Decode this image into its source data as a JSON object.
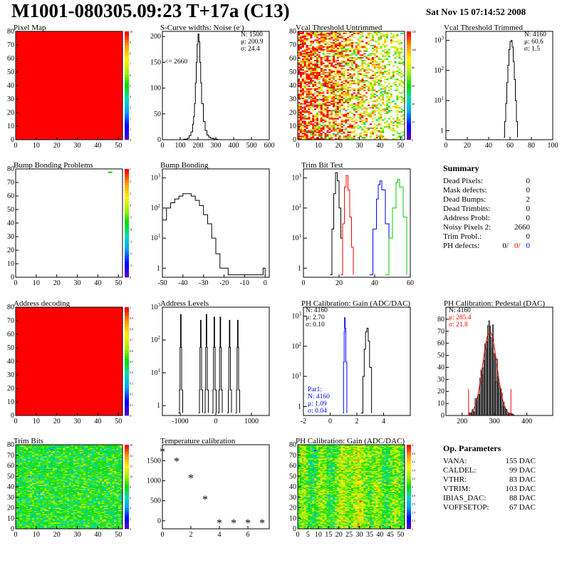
{
  "header": {
    "title": "M1001-080305.09:23 T+17a (C13)",
    "date": "Sat Nov 15 07:14:52 2008"
  },
  "chart_data": [
    {
      "id": "pixelmap",
      "type": "heatmap",
      "title": "Pixel Map",
      "xlim": [
        0,
        52
      ],
      "ylim": [
        0,
        80
      ],
      "xticks": [
        0,
        10,
        20,
        30,
        40,
        50
      ],
      "yticks": [
        0,
        10,
        20,
        30,
        40,
        50,
        60,
        70,
        80
      ],
      "palette_ticks": [
        "0",
        "1",
        "2",
        "3",
        "4",
        "5",
        "6",
        "7",
        "8",
        "9",
        "10"
      ],
      "fill": "#ff0000"
    },
    {
      "id": "scurve",
      "type": "line",
      "title": "S-Curve widths: Noise (e",
      "title_suffix": "-",
      "xlim": [
        0,
        600
      ],
      "ylim": [
        0,
        210
      ],
      "xticks": [
        0,
        100,
        200,
        300,
        400,
        500,
        600
      ],
      "yticks": [
        0,
        50,
        100,
        150,
        200
      ],
      "stats": [
        {
          "label": "N:",
          "value": "1500"
        },
        {
          "label": "μ:",
          "value": "200.9"
        },
        {
          "label": "σ:",
          "value": "24.4"
        }
      ],
      "annotation": "<= 2660",
      "x": [
        100,
        120,
        140,
        150,
        160,
        170,
        175,
        180,
        185,
        190,
        195,
        200,
        205,
        210,
        215,
        220,
        230,
        240,
        250,
        260,
        270,
        280,
        290,
        300,
        310
      ],
      "y": [
        0,
        1,
        3,
        8,
        15,
        30,
        45,
        70,
        110,
        150,
        185,
        205,
        190,
        150,
        110,
        70,
        35,
        18,
        9,
        5,
        3,
        2,
        1,
        1,
        0
      ]
    },
    {
      "id": "vcal_untrim",
      "type": "heatmap",
      "title": "Vcal Threshold Untrimmed",
      "xlim": [
        0,
        52
      ],
      "ylim": [
        0,
        80
      ],
      "xticks": [
        0,
        10,
        20,
        30,
        40,
        50
      ],
      "yticks": [
        0,
        10,
        20,
        30,
        40,
        50,
        60,
        70,
        80
      ],
      "palette_ticks": [
        "0",
        "20",
        "40",
        "60",
        "80",
        "100",
        "120"
      ]
    },
    {
      "id": "vcal_trim",
      "type": "line",
      "title": "Vcal Threshold Trimmed",
      "log": true,
      "xlim": [
        0,
        100
      ],
      "ylim": [
        0.5,
        2000
      ],
      "xticks": [
        0,
        20,
        40,
        60,
        80,
        100
      ],
      "stats": [
        {
          "label": "N:",
          "value": "4160"
        },
        {
          "label": "μ:",
          "value": "60.6"
        },
        {
          "label": "σ:",
          "value": "1.5"
        }
      ],
      "x": [
        54,
        55,
        56,
        57,
        58,
        59,
        60,
        61,
        62,
        63,
        64,
        65,
        66,
        67
      ],
      "y": [
        0.6,
        2,
        8,
        40,
        150,
        500,
        900,
        1000,
        600,
        200,
        50,
        10,
        2,
        0.6
      ]
    },
    {
      "id": "bump_problems",
      "type": "heatmap",
      "title": "Bump Bonding Problems",
      "xlim": [
        0,
        52
      ],
      "ylim": [
        0,
        80
      ],
      "xticks": [
        0,
        10,
        20,
        30,
        40,
        50
      ],
      "yticks": [
        0,
        10,
        20,
        30,
        40,
        50,
        60,
        70,
        80
      ],
      "palette_ticks": [
        "0",
        "-1",
        "-2",
        "-3",
        "-4",
        "-5",
        "4",
        "3",
        "2",
        "1"
      ],
      "fill": "#ffffff",
      "points": [
        [
          45,
          78
        ],
        [
          46,
          78
        ]
      ]
    },
    {
      "id": "bump",
      "type": "line",
      "title": "Bump Bonding",
      "log": true,
      "xlim": [
        -50,
        2
      ],
      "ylim": [
        0.5,
        2000
      ],
      "xticks": [
        -50,
        -40,
        -30,
        -20,
        -10,
        0
      ],
      "x": [
        -50,
        -48,
        -46,
        -44,
        -42,
        -40,
        -38,
        -36,
        -34,
        -32,
        -30,
        -28,
        -26,
        -24,
        -22,
        -20,
        -18,
        -1,
        0
      ],
      "y": [
        40,
        100,
        150,
        200,
        250,
        300,
        300,
        250,
        180,
        120,
        60,
        30,
        10,
        3,
        1,
        1,
        0.6,
        1,
        0.6
      ]
    },
    {
      "id": "trimbit",
      "type": "line",
      "title": "Trim Bit Test",
      "log": true,
      "xlim": [
        0,
        60
      ],
      "ylim": [
        0.5,
        2000
      ],
      "xticks": [
        0,
        20,
        40,
        60
      ],
      "series": [
        {
          "color": "#000000",
          "x": [
            15,
            16,
            17,
            18,
            19,
            20,
            21,
            22
          ],
          "y": [
            0.6,
            20,
            300,
            1500,
            800,
            100,
            10,
            0.6
          ]
        },
        {
          "color": "#ff0000",
          "x": [
            21,
            22,
            23,
            24,
            25,
            26,
            27,
            28
          ],
          "y": [
            0.6,
            30,
            500,
            1200,
            400,
            50,
            5,
            0.6
          ]
        },
        {
          "color": "#0000ff",
          "x": [
            37,
            39,
            41,
            42,
            43,
            44,
            46,
            48
          ],
          "y": [
            0.6,
            20,
            200,
            600,
            800,
            400,
            30,
            0.6
          ]
        },
        {
          "color": "#00cc00",
          "x": [
            46,
            48,
            50,
            52,
            53,
            54,
            56,
            58
          ],
          "y": [
            0.6,
            10,
            100,
            700,
            900,
            500,
            50,
            0.6
          ]
        }
      ]
    },
    {
      "id": "addr_dec",
      "type": "heatmap",
      "title": "Address decoding",
      "xlim": [
        0,
        52
      ],
      "ylim": [
        0,
        80
      ],
      "xticks": [
        0,
        10,
        20,
        30,
        40,
        50
      ],
      "yticks": [
        0,
        10,
        20,
        30,
        40,
        50,
        60,
        70,
        80
      ],
      "palette_ticks": [
        "0",
        "0.1",
        "0.2",
        "0.3",
        "0.4",
        "0.5",
        "0.6",
        "0.7",
        "0.8",
        "0.9",
        "1"
      ],
      "fill": "#ff0000"
    },
    {
      "id": "addr_levels",
      "type": "bar",
      "title": "Address Levels",
      "log": true,
      "xlim": [
        -1500,
        1500
      ],
      "ylim": [
        0.5,
        1000
      ],
      "xticks": [
        -1000,
        0,
        1000
      ],
      "peaks": [
        -990,
        -430,
        -270,
        -50,
        120,
        380,
        610
      ],
      "heights": [
        600,
        400,
        600,
        500,
        500,
        400,
        400
      ]
    },
    {
      "id": "ph_gain",
      "type": "line",
      "title": "PH Calibration: Gain (ADC/DAC)",
      "log": true,
      "xlim": [
        -2,
        6
      ],
      "ylim": [
        0.5,
        2000
      ],
      "xticks": [
        -2,
        0,
        2,
        4
      ],
      "stats": [
        {
          "label": "N:",
          "value": "4160"
        },
        {
          "label": "μ:",
          "value": "2.70"
        },
        {
          "label": "σ:",
          "value": "0.10"
        }
      ],
      "par1": {
        "label": "Par1:",
        "stats": [
          {
            "label": "N:",
            "value": "4160"
          },
          {
            "label": "μ:",
            "value": "1.09"
          },
          {
            "label": "σ:",
            "value": "0.04"
          }
        ]
      },
      "series": [
        {
          "color": "#000000",
          "x": [
            2.3,
            2.45,
            2.55,
            2.65,
            2.75,
            2.85,
            2.95,
            3.1
          ],
          "y": [
            0.6,
            10,
            80,
            300,
            400,
            150,
            20,
            0.6
          ]
        },
        {
          "color": "#0000ff",
          "x": [
            0.95,
            1.0,
            1.05,
            1.08,
            1.12,
            1.17,
            1.25
          ],
          "y": [
            0.6,
            30,
            300,
            900,
            400,
            30,
            0.6
          ]
        }
      ]
    },
    {
      "id": "ph_ped",
      "type": "bar",
      "title": "PH Calibration: Pedestal (DAC)",
      "xlim": [
        150,
        480
      ],
      "ylim": [
        0,
        90
      ],
      "xticks": [
        200,
        300,
        400
      ],
      "yticks": [
        0,
        10,
        20,
        30,
        40,
        50,
        60,
        70,
        80
      ],
      "stats": [
        {
          "label": "N:",
          "value": "4160"
        },
        {
          "label": "μ:",
          "value": "285.4"
        },
        {
          "label": "σ:",
          "value": "21.8"
        }
      ],
      "mu": 285.4,
      "sigma": 21.8,
      "amp": 70
    },
    {
      "id": "trimbits",
      "type": "heatmap",
      "title": "Trim Bits",
      "xlim": [
        0,
        52
      ],
      "ylim": [
        0,
        80
      ],
      "xticks": [
        0,
        10,
        20,
        30,
        40,
        50
      ],
      "yticks": [
        0,
        10,
        20,
        30,
        40,
        50,
        60,
        70,
        80
      ],
      "palette_ticks": [
        "0",
        "2",
        "4",
        "6",
        "8",
        "10",
        "12",
        "14",
        "16"
      ]
    },
    {
      "id": "temp",
      "type": "scatter",
      "title": "Temperature calibration",
      "xlim": [
        0,
        7.5
      ],
      "ylim": [
        -200,
        1900
      ],
      "xticks": [
        0,
        2,
        4,
        6
      ],
      "yticks": [
        0,
        500,
        1000,
        1500
      ],
      "x": [
        0,
        1,
        2,
        3,
        4,
        5,
        6,
        7
      ],
      "y": [
        1720,
        1480,
        1060,
        530,
        -60,
        -60,
        -60,
        -60
      ]
    },
    {
      "id": "ph_gain_map",
      "type": "heatmap",
      "title": "PH Calibration: Gain (ADC/DAC)",
      "xlim": [
        0,
        52
      ],
      "ylim": [
        0,
        80
      ],
      "xticks": [
        0,
        5,
        10,
        15,
        20,
        25,
        30,
        35,
        40,
        45,
        50
      ],
      "yticks": [
        0,
        10,
        20,
        30,
        40,
        50,
        60,
        70,
        80
      ],
      "palette_ticks": [
        "2",
        "2.2",
        "2.4",
        "2.6",
        "2.8",
        "3",
        "3.2",
        "3.4",
        "3.6",
        "3.8",
        "4"
      ]
    }
  ],
  "summary": {
    "title": "Summary",
    "rows": [
      {
        "label": "Dead Pixels:",
        "value": "0"
      },
      {
        "label": "Mask defects:",
        "value": "0"
      },
      {
        "label": "Dead Bumps:",
        "value": "2"
      },
      {
        "label": "Dead Trimbits:",
        "value": "0"
      },
      {
        "label": "Address Probl:",
        "value": "0"
      },
      {
        "label": "Noisy Pixels 2:",
        "value": "2660"
      },
      {
        "label": "Trim Probl.:",
        "value": "0"
      }
    ],
    "ph_label": "PH defects:",
    "ph_values": [
      {
        "v": "0/",
        "c": "#000000"
      },
      {
        "v": "0/",
        "c": "#ff0000"
      },
      {
        "v": "0",
        "c": "#0000ff"
      }
    ]
  },
  "op_params": {
    "title": "Op. Parameters",
    "rows": [
      {
        "label": "VANA:",
        "value": "155 DAC"
      },
      {
        "label": "CALDEL:",
        "value": "99 DAC"
      },
      {
        "label": "VTHR:",
        "value": "83 DAC"
      },
      {
        "label": "VTRIM:",
        "value": "103 DAC"
      },
      {
        "label": "IBIAS_DAC:",
        "value": "88 DAC"
      },
      {
        "label": "VOFFSETOP:",
        "value": "67 DAC"
      }
    ]
  },
  "colors": {
    "axis": "#000000",
    "red": "#ff0000",
    "blue": "#0000ff",
    "green": "#00cc00"
  }
}
